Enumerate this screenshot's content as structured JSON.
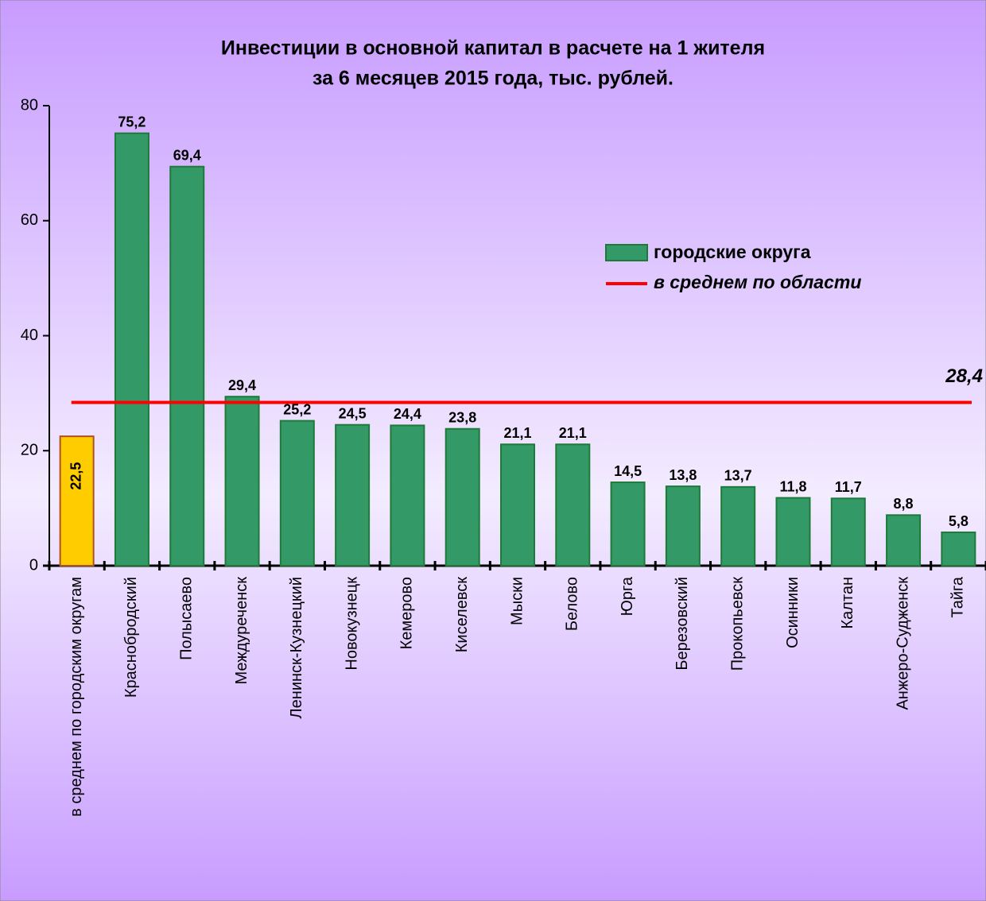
{
  "chart_data": {
    "type": "bar",
    "title": [
      "Инвестиции в основной капитал в расчете на 1 жителя",
      "за 6 месяцев 2015 года, тыс. рублей."
    ],
    "categories": [
      "в среднем по городским округам",
      "Краснобродский",
      "Полысаево",
      "Междуреченск",
      "Ленинск-Кузнецкий",
      "Новокузнецк",
      "Кемерово",
      "Киселевск",
      "Мыски",
      "Белово",
      "Юрга",
      "Березовский",
      "Прокопьевск",
      "Осинники",
      "Калтан",
      "Анжеро-Судженск",
      "Тайга"
    ],
    "series": [
      {
        "name": "городские округа",
        "color": "#339966",
        "colors": [
          "#ffcc00",
          "#339966",
          "#339966",
          "#339966",
          "#339966",
          "#339966",
          "#339966",
          "#339966",
          "#339966",
          "#339966",
          "#339966",
          "#339966",
          "#339966",
          "#339966",
          "#339966",
          "#339966",
          "#339966"
        ],
        "values": [
          22.5,
          75.2,
          69.4,
          29.4,
          25.2,
          24.5,
          24.4,
          23.8,
          21.1,
          21.1,
          14.5,
          13.8,
          13.7,
          11.8,
          11.7,
          8.8,
          5.8
        ],
        "value_labels": [
          "22,5",
          "75,2",
          "69,4",
          "29,4",
          "25,2",
          "24,5",
          "24,4",
          "23,8",
          "21,1",
          "21,1",
          "14,5",
          "13,8",
          "13,7",
          "11,8",
          "11,7",
          "8,8",
          "5,8"
        ]
      }
    ],
    "reference_line": {
      "name": "в среднем по области",
      "color": "#ff0000",
      "value": 28.4,
      "value_label": "28,4"
    },
    "ylim": [
      0,
      80
    ],
    "yticks": [
      0,
      20,
      40,
      60,
      80
    ],
    "legend": "upper right"
  }
}
